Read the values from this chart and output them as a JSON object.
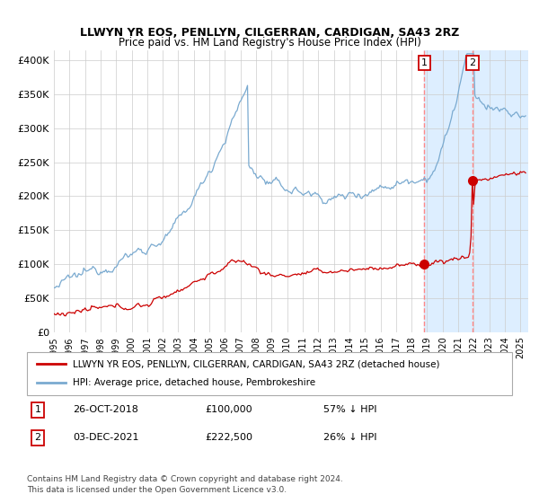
{
  "title": "LLWYN YR EOS, PENLLYN, CILGERRAN, CARDIGAN, SA43 2RZ",
  "subtitle": "Price paid vs. HM Land Registry's House Price Index (HPI)",
  "ylabel_ticks": [
    "£0",
    "£50K",
    "£100K",
    "£150K",
    "£200K",
    "£250K",
    "£300K",
    "£350K",
    "£400K"
  ],
  "ytick_values": [
    0,
    50000,
    100000,
    150000,
    200000,
    250000,
    300000,
    350000,
    400000
  ],
  "ylim": [
    0,
    415000
  ],
  "xlim_start": 1995.0,
  "xlim_end": 2025.5,
  "marker1_x": 2018.82,
  "marker1_y": 100000,
  "marker2_x": 2021.92,
  "marker2_y": 222500,
  "vline1_x": 2018.82,
  "vline2_x": 2021.92,
  "shade_start": 2018.82,
  "shade_end": 2025.5,
  "red_line_color": "#cc0000",
  "blue_line_color": "#7aaad0",
  "marker_color": "#cc0000",
  "shade_color": "#ddeeff",
  "vline_color": "#ff8888",
  "legend_label_red": "LLWYN YR EOS, PENLLYN, CILGERRAN, CARDIGAN, SA43 2RZ (detached house)",
  "legend_label_blue": "HPI: Average price, detached house, Pembrokeshire",
  "table_rows": [
    {
      "num": "1",
      "date": "26-OCT-2018",
      "price": "£100,000",
      "pct": "57% ↓ HPI"
    },
    {
      "num": "2",
      "date": "03-DEC-2021",
      "price": "£222,500",
      "pct": "26% ↓ HPI"
    }
  ],
  "footnote1": "Contains HM Land Registry data © Crown copyright and database right 2024.",
  "footnote2": "This data is licensed under the Open Government Licence v3.0.",
  "background_color": "#ffffff",
  "grid_color": "#cccccc",
  "title_fontsize": 9,
  "subtitle_fontsize": 8.5
}
